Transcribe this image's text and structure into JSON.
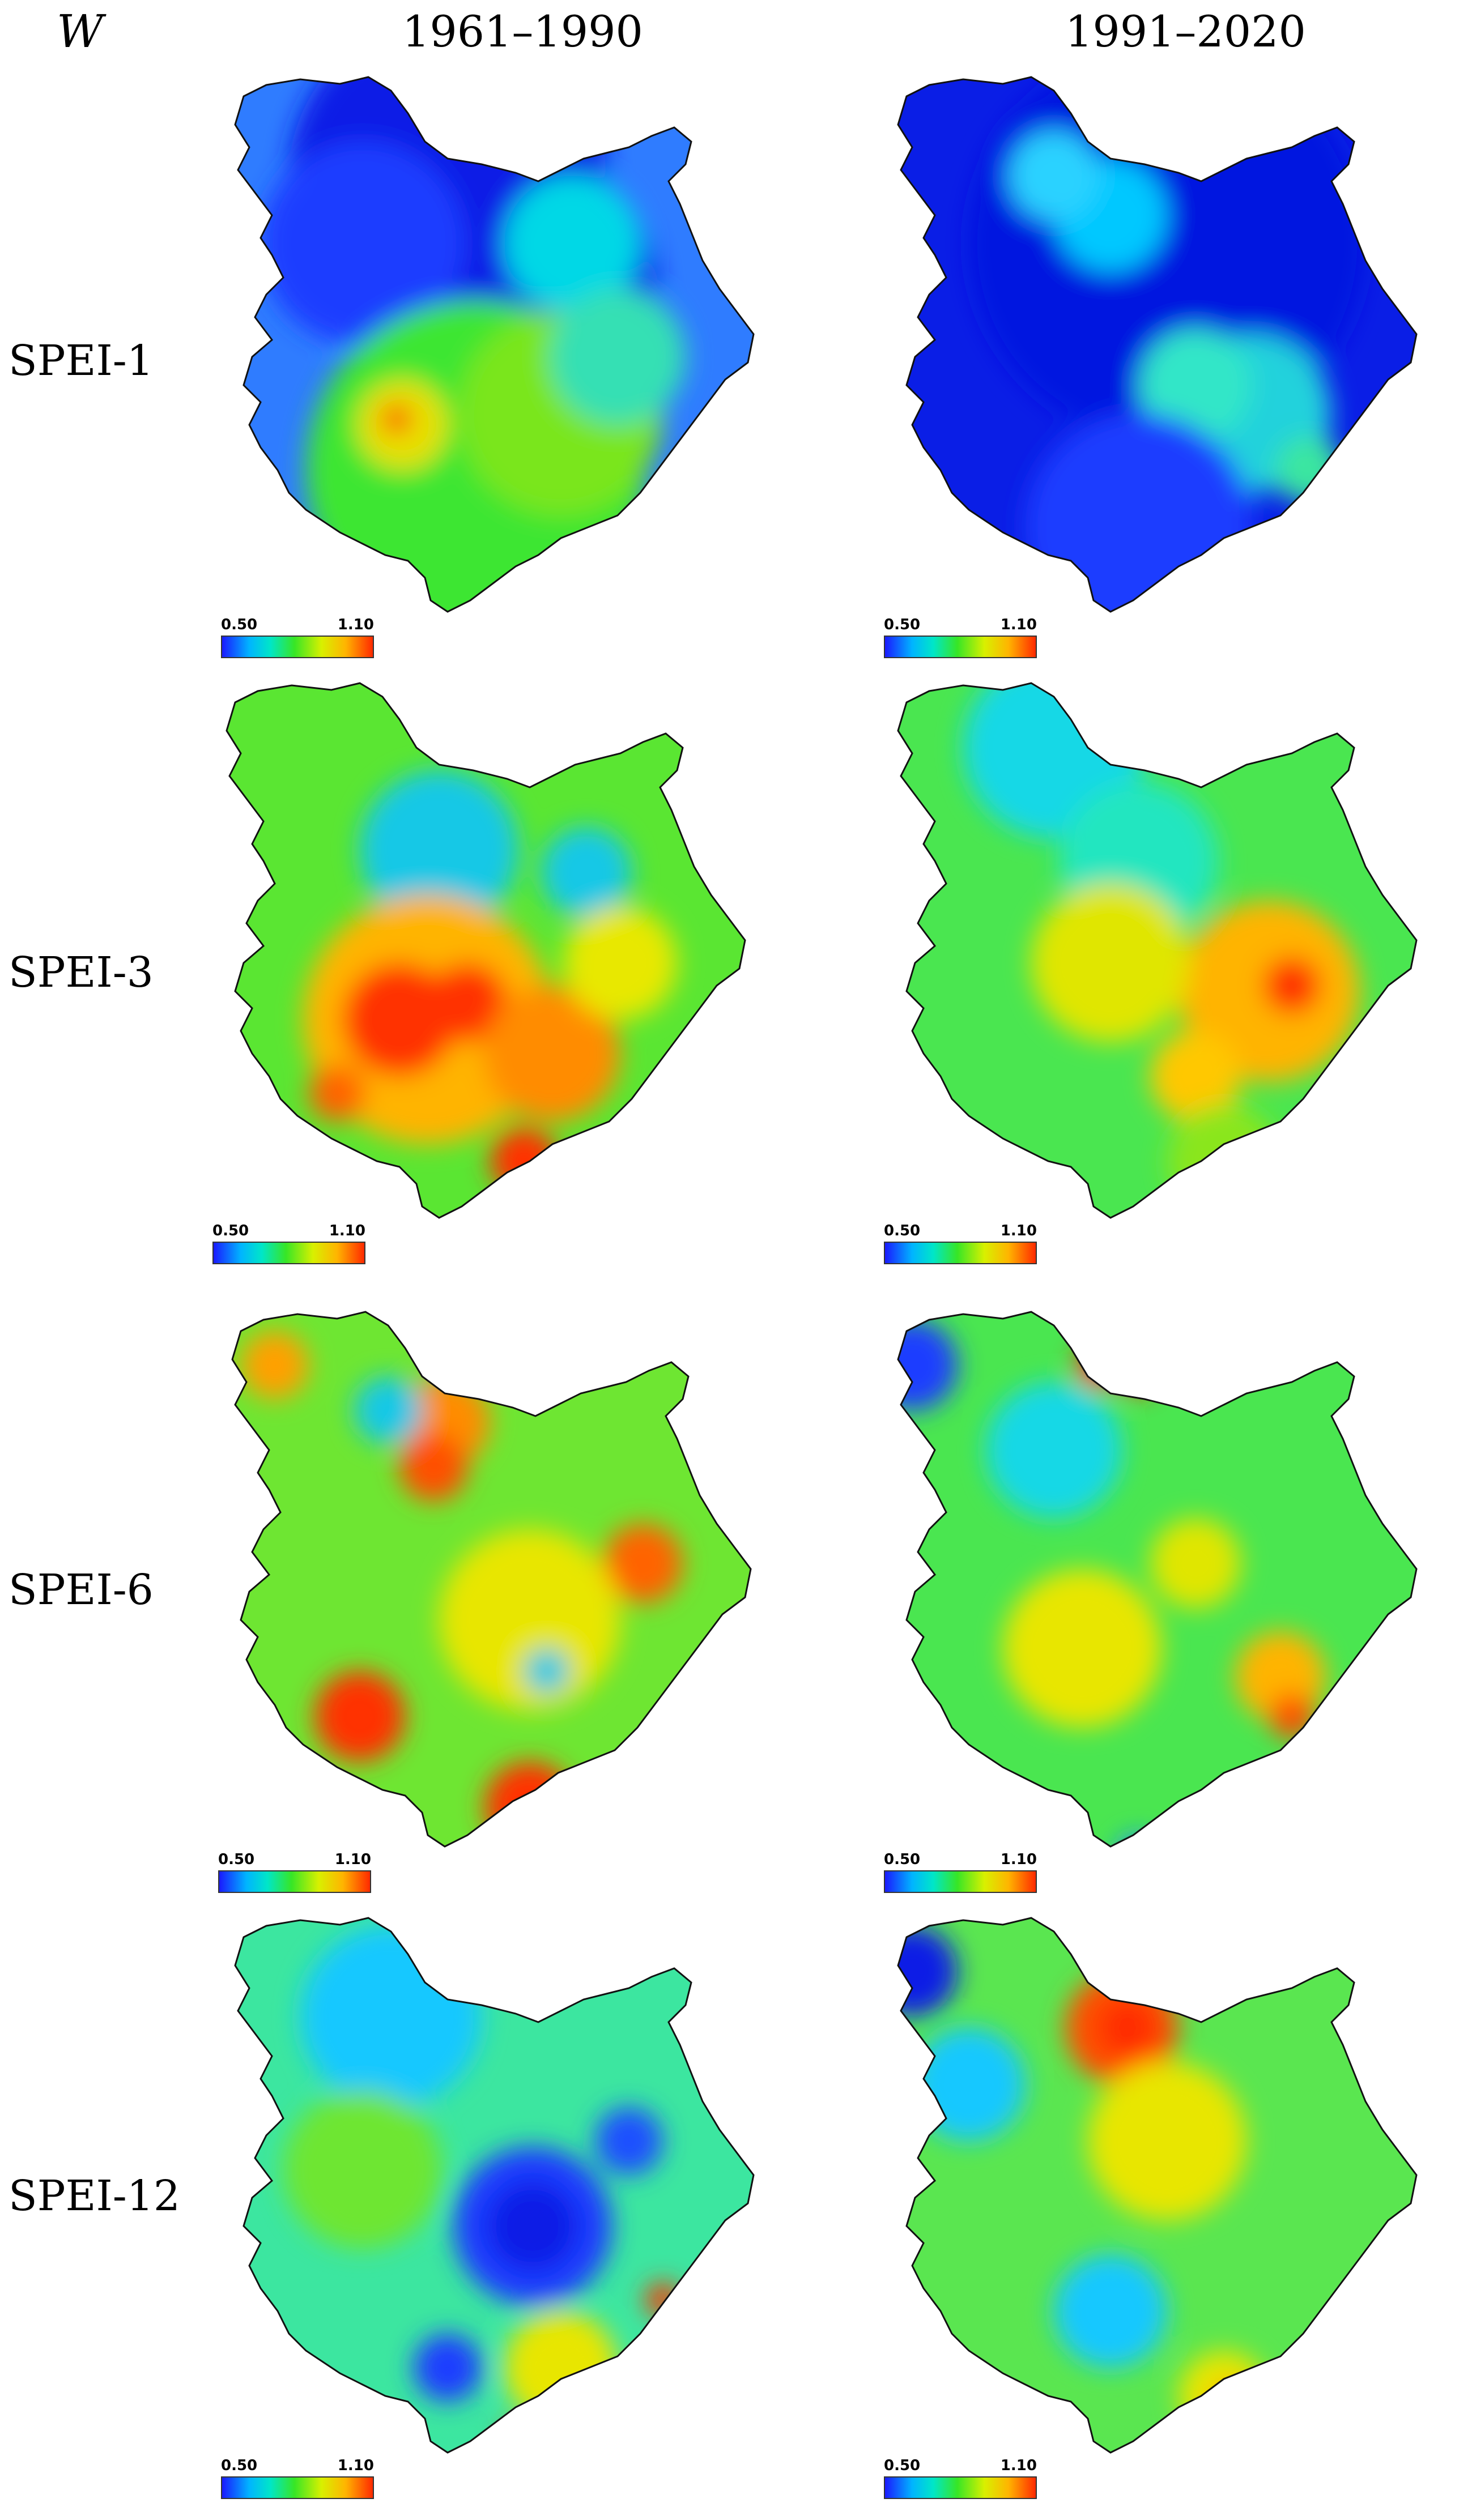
{
  "header": {
    "variable": "W",
    "period_1": "1961–1990",
    "period_2": "1991–2020"
  },
  "legend": {
    "min": "0.50",
    "max": "1.10",
    "colormap": [
      "#1a1aff",
      "#00b4ff",
      "#00e6c8",
      "#37e626",
      "#d8f000",
      "#ffb400",
      "#ff2a00"
    ]
  },
  "rows": [
    {
      "label": "SPEI-1",
      "panels": [
        {
          "period": "1961–1990",
          "base": "#2f7cff",
          "blobs": [
            [
              "#0a1ee6",
              0.4,
              0.18,
              0.28
            ],
            [
              "#0a1ee6",
              0.55,
              0.38,
              0.22
            ],
            [
              "#1a3cff",
              0.25,
              0.3,
              0.18
            ],
            [
              "#00d8e6",
              0.62,
              0.3,
              0.12
            ],
            [
              "#3ce632",
              0.45,
              0.7,
              0.3
            ],
            [
              "#7ae61e",
              0.6,
              0.6,
              0.18
            ],
            [
              "#e8e000",
              0.32,
              0.62,
              0.08
            ],
            [
              "#ff2a00",
              0.31,
              0.61,
              0.025
            ],
            [
              "#34e0b4",
              0.7,
              0.5,
              0.12
            ]
          ]
        },
        {
          "period": "1991–2020",
          "base": "#0a1ee6",
          "blobs": [
            [
              "#0014e0",
              0.5,
              0.3,
              0.35
            ],
            [
              "#00c8ff",
              0.4,
              0.25,
              0.1
            ],
            [
              "#22d2dc",
              0.65,
              0.6,
              0.14
            ],
            [
              "#30e6c8",
              0.55,
              0.55,
              0.1
            ],
            [
              "#2ad2ff",
              0.3,
              0.18,
              0.08
            ],
            [
              "#1a3cff",
              0.45,
              0.8,
              0.2
            ],
            [
              "#3ae6a0",
              0.75,
              0.7,
              0.06
            ]
          ]
        }
      ]
    },
    {
      "label": "SPEI-3",
      "panels": [
        {
          "period": "1961–1990",
          "base": "#5ae632",
          "blobs": [
            [
              "#18c8e6",
              0.4,
              0.3,
              0.14
            ],
            [
              "#18c8e6",
              0.66,
              0.34,
              0.08
            ],
            [
              "#ffb400",
              0.38,
              0.6,
              0.22
            ],
            [
              "#ff3200",
              0.33,
              0.6,
              0.1
            ],
            [
              "#ff3200",
              0.45,
              0.57,
              0.07
            ],
            [
              "#ff8c00",
              0.6,
              0.66,
              0.12
            ],
            [
              "#ff3200",
              0.55,
              0.85,
              0.06
            ],
            [
              "#e8e800",
              0.72,
              0.5,
              0.1
            ],
            [
              "#ff6400",
              0.22,
              0.73,
              0.05
            ]
          ]
        },
        {
          "period": "1991–2020",
          "base": "#4ae650",
          "blobs": [
            [
              "#18d8e6",
              0.3,
              0.12,
              0.16
            ],
            [
              "#20e6c0",
              0.45,
              0.32,
              0.14
            ],
            [
              "#ffb400",
              0.68,
              0.55,
              0.16
            ],
            [
              "#ff3200",
              0.72,
              0.54,
              0.05
            ],
            [
              "#e0e600",
              0.4,
              0.5,
              0.14
            ],
            [
              "#ffc800",
              0.55,
              0.7,
              0.08
            ],
            [
              "#8ae61e",
              0.6,
              0.85,
              0.1
            ]
          ]
        }
      ]
    },
    {
      "label": "SPEI-6",
      "panels": [
        {
          "period": "1961–1990",
          "base": "#6ee632",
          "blobs": [
            [
              "#ff8c00",
              0.4,
              0.2,
              0.08
            ],
            [
              "#ff5000",
              0.38,
              0.28,
              0.06
            ],
            [
              "#ff6400",
              0.75,
              0.45,
              0.07
            ],
            [
              "#ff3200",
              0.25,
              0.72,
              0.08
            ],
            [
              "#ff3200",
              0.55,
              0.88,
              0.08
            ],
            [
              "#e8e600",
              0.55,
              0.55,
              0.16
            ],
            [
              "#18c8e6",
              0.3,
              0.18,
              0.06
            ],
            [
              "#18c8e6",
              0.58,
              0.64,
              0.04
            ],
            [
              "#ffa000",
              0.1,
              0.1,
              0.06
            ]
          ]
        },
        {
          "period": "1991–2020",
          "base": "#4ae650",
          "blobs": [
            [
              "#1a3cff",
              0.05,
              0.1,
              0.08
            ],
            [
              "#ff2a00",
              0.38,
              0.1,
              0.04
            ],
            [
              "#ff2a00",
              0.45,
              0.12,
              0.03
            ],
            [
              "#18d8e6",
              0.3,
              0.25,
              0.12
            ],
            [
              "#e8e600",
              0.35,
              0.6,
              0.14
            ],
            [
              "#ffb400",
              0.7,
              0.65,
              0.08
            ],
            [
              "#ff5000",
              0.72,
              0.72,
              0.04
            ],
            [
              "#1a8cff",
              0.45,
              0.97,
              0.04
            ],
            [
              "#e0e600",
              0.55,
              0.45,
              0.08
            ]
          ]
        }
      ]
    },
    {
      "label": "SPEI-12",
      "panels": [
        {
          "period": "1961–1990",
          "base": "#3ce6a0",
          "blobs": [
            [
              "#18c8ff",
              0.3,
              0.18,
              0.16
            ],
            [
              "#1a3cff",
              0.55,
              0.55,
              0.14
            ],
            [
              "#0a1ee6",
              0.55,
              0.55,
              0.08
            ],
            [
              "#1a3cff",
              0.4,
              0.8,
              0.06
            ],
            [
              "#6ee632",
              0.25,
              0.45,
              0.14
            ],
            [
              "#e8e600",
              0.6,
              0.8,
              0.1
            ],
            [
              "#ff3200",
              0.78,
              0.68,
              0.03
            ],
            [
              "#ff3200",
              0.52,
              0.92,
              0.02
            ],
            [
              "#1a50ff",
              0.72,
              0.4,
              0.06
            ]
          ]
        },
        {
          "period": "1991–2020",
          "base": "#5ae650",
          "blobs": [
            [
              "#0a1ee6",
              0.05,
              0.1,
              0.08
            ],
            [
              "#18c8ff",
              0.15,
              0.3,
              0.1
            ],
            [
              "#ff5000",
              0.42,
              0.2,
              0.1
            ],
            [
              "#ff2a00",
              0.43,
              0.2,
              0.05
            ],
            [
              "#ff8c00",
              0.55,
              0.45,
              0.06
            ],
            [
              "#e8e600",
              0.5,
              0.4,
              0.14
            ],
            [
              "#18c8ff",
              0.4,
              0.7,
              0.1
            ],
            [
              "#e8e600",
              0.6,
              0.85,
              0.08
            ],
            [
              "#ff8c00",
              0.62,
              0.87,
              0.04
            ]
          ]
        }
      ]
    }
  ]
}
